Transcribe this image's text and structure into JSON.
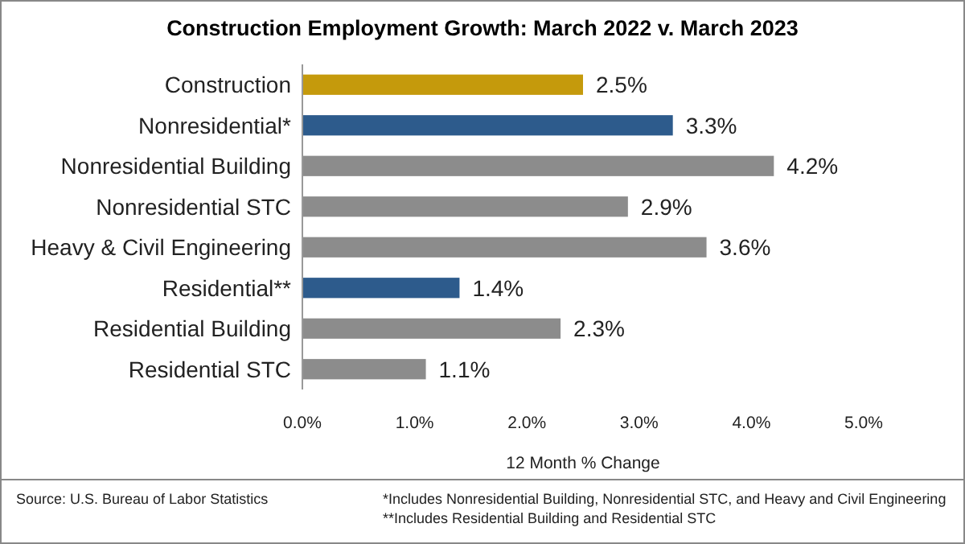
{
  "chart_data": {
    "type": "bar",
    "orientation": "horizontal",
    "title": "Construction Employment Growth: March 2022 v. March 2023",
    "categories": [
      "Construction",
      "Nonresidential*",
      "Nonresidential Building",
      "Nonresidential STC",
      "Heavy & Civil Engineering",
      "Residential**",
      "Residential Building",
      "Residential STC"
    ],
    "values": [
      2.5,
      3.3,
      4.2,
      2.9,
      3.6,
      1.4,
      2.3,
      1.1
    ],
    "colors": [
      "#c59a0c",
      "#2d5b8c",
      "#8c8c8c",
      "#8c8c8c",
      "#8c8c8c",
      "#2d5b8c",
      "#8c8c8c",
      "#8c8c8c"
    ],
    "value_labels": [
      "2.5%",
      "3.3%",
      "4.2%",
      "2.9%",
      "3.6%",
      "1.4%",
      "2.3%",
      "1.1%"
    ],
    "xlim": [
      0,
      5
    ],
    "xticks": [
      {
        "value": 0,
        "label": "0.0%"
      },
      {
        "value": 1,
        "label": "1.0%"
      },
      {
        "value": 2,
        "label": "2.0%"
      },
      {
        "value": 3,
        "label": "3.0%"
      },
      {
        "value": 4,
        "label": "4.0%"
      },
      {
        "value": 5,
        "label": "5.0%"
      }
    ],
    "xlabel": "12 Month % Change",
    "annotations": [
      "Source:  U.S. Bureau of Labor Statistics",
      "*Includes Nonresidential Building, Nonresidential STC, and Heavy and Civil Engineering",
      "**Includes Residential Building and Residential STC"
    ]
  }
}
